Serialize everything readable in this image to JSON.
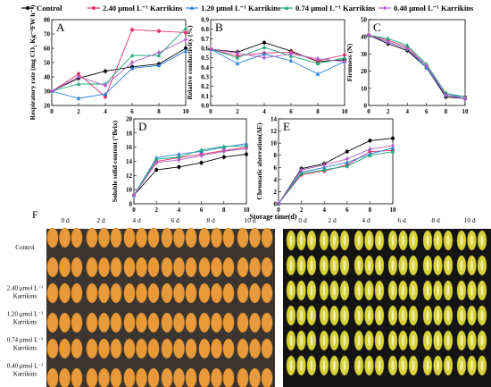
{
  "legend": {
    "items": [
      {
        "label": "Control",
        "color": "#000000",
        "marker": "circle"
      },
      {
        "label": "2.40 μmol L⁻¹ Karrikins",
        "color": "#e0306a",
        "marker": "circle"
      },
      {
        "label": "1.20 μmol L⁻¹ Karrikins",
        "color": "#2a7fd8",
        "marker": "triangle"
      },
      {
        "label": "0.74 μmol L⁻¹ Karrikins",
        "color": "#18a878",
        "marker": "triangle"
      },
      {
        "label": "0.40 μmol L⁻¹ Karrikins",
        "color": "#b060c8",
        "marker": "diamond"
      }
    ]
  },
  "chart_data": [
    {
      "panel": "A",
      "type": "line",
      "ylabel": "Respiratory rate (mg CO₂ Kg⁻¹FW h⁻¹)",
      "x": [
        0,
        2,
        4,
        6,
        8,
        10
      ],
      "xlim": [
        0,
        10
      ],
      "ylim": [
        20,
        80
      ],
      "yticks": [
        20,
        30,
        40,
        50,
        60,
        70,
        80
      ],
      "xticks": [
        0,
        2,
        4,
        6,
        8,
        10
      ],
      "series": [
        {
          "name": "Control",
          "values": [
            30,
            39,
            44,
            47,
            49,
            60
          ]
        },
        {
          "name": "2.40 μmol L⁻¹ Karrikins",
          "values": [
            30,
            42,
            26,
            73,
            72,
            71
          ]
        },
        {
          "name": "1.20 μmol L⁻¹ Karrikins",
          "values": [
            30,
            25,
            28,
            46,
            48,
            58
          ]
        },
        {
          "name": "0.74 μmol L⁻¹ Karrikins",
          "values": [
            30,
            35,
            35,
            55,
            55,
            74
          ]
        },
        {
          "name": "0.40 μmol L⁻¹ Karrikins",
          "values": [
            30,
            40,
            34,
            50,
            57,
            66
          ]
        }
      ]
    },
    {
      "panel": "B",
      "type": "line",
      "ylabel": "Relative conductivity (%)",
      "x": [
        0,
        2,
        4,
        6,
        8,
        10
      ],
      "xlim": [
        0,
        10
      ],
      "ylim": [
        0.0,
        0.9
      ],
      "yticks": [
        0.0,
        0.1,
        0.2,
        0.3,
        0.4,
        0.5,
        0.6,
        0.7,
        0.8,
        0.9
      ],
      "xticks": [
        0,
        2,
        4,
        6,
        8,
        10
      ],
      "series": [
        {
          "name": "Control",
          "values": [
            0.59,
            0.56,
            0.66,
            0.57,
            0.46,
            0.48
          ]
        },
        {
          "name": "2.40 μmol L⁻¹ Karrikins",
          "values": [
            0.59,
            0.52,
            0.55,
            0.56,
            0.47,
            0.53
          ]
        },
        {
          "name": "1.20 μmol L⁻¹ Karrikins",
          "values": [
            0.59,
            0.44,
            0.54,
            0.47,
            0.33,
            0.46
          ]
        },
        {
          "name": "0.74 μmol L⁻¹ Karrikins",
          "values": [
            0.59,
            0.5,
            0.61,
            0.52,
            0.44,
            0.5
          ]
        },
        {
          "name": "0.40 μmol L⁻¹ Karrikins",
          "values": [
            0.59,
            0.55,
            0.5,
            0.54,
            0.49,
            0.46
          ]
        }
      ]
    },
    {
      "panel": "C",
      "type": "line",
      "ylabel": "Firmness (N)",
      "x": [
        0,
        2,
        4,
        6,
        8,
        10
      ],
      "xlim": [
        0,
        10
      ],
      "ylim": [
        0,
        50
      ],
      "yticks": [
        0,
        10,
        20,
        30,
        40,
        50
      ],
      "xticks": [
        0,
        2,
        4,
        6,
        8,
        10
      ],
      "series": [
        {
          "name": "Control",
          "values": [
            41,
            36,
            32,
            22,
            5,
            4
          ]
        },
        {
          "name": "2.40 μmol L⁻¹ Karrikins",
          "values": [
            41,
            38,
            34,
            23,
            7,
            5
          ]
        },
        {
          "name": "1.20 μmol L⁻¹ Karrikins",
          "values": [
            41,
            37,
            33,
            22,
            6,
            5
          ]
        },
        {
          "name": "0.74 μmol L⁻¹ Karrikins",
          "values": [
            41,
            39,
            35,
            24,
            7,
            5
          ]
        },
        {
          "name": "0.40 μmol L⁻¹ Karrikins",
          "values": [
            41,
            37,
            33,
            23,
            6,
            4
          ]
        }
      ]
    },
    {
      "panel": "D",
      "type": "line",
      "ylabel": "Soluble solid content (°Brix)",
      "x": [
        0,
        2,
        4,
        6,
        8,
        10
      ],
      "xlim": [
        0,
        10
      ],
      "ylim": [
        8,
        20
      ],
      "yticks": [
        8,
        10,
        12,
        14,
        16,
        18,
        20
      ],
      "xticks": [
        0,
        2,
        4,
        6,
        8,
        10
      ],
      "series": [
        {
          "name": "Control",
          "values": [
            9.2,
            12.8,
            13.2,
            13.8,
            14.6,
            15.0
          ]
        },
        {
          "name": "2.40 μmol L⁻¹ Karrikins",
          "values": [
            9.2,
            14.0,
            14.5,
            15.0,
            15.5,
            16.0
          ]
        },
        {
          "name": "1.20 μmol L⁻¹ Karrikins",
          "values": [
            9.2,
            14.5,
            15.0,
            15.4,
            16.0,
            16.5
          ]
        },
        {
          "name": "0.74 μmol L⁻¹ Karrikins",
          "values": [
            9.2,
            14.3,
            14.6,
            15.6,
            16.1,
            16.2
          ]
        },
        {
          "name": "0.40 μmol L⁻¹ Karrikins",
          "values": [
            9.2,
            13.8,
            14.2,
            14.8,
            15.4,
            15.8
          ]
        }
      ]
    },
    {
      "panel": "E",
      "type": "line",
      "ylabel": "Chromatic aberration(ΔE)",
      "xlabel": "Storage time(d)",
      "x": [
        0,
        2,
        4,
        6,
        8,
        10
      ],
      "xlim": [
        0,
        10
      ],
      "ylim": [
        0,
        14
      ],
      "yticks": [
        0,
        2,
        4,
        6,
        8,
        10,
        12,
        14
      ],
      "xticks": [
        0,
        2,
        4,
        6,
        8,
        10
      ],
      "series": [
        {
          "name": "Control",
          "values": [
            0,
            5.8,
            6.6,
            8.6,
            10.4,
            10.8
          ]
        },
        {
          "name": "2.40 μmol L⁻¹ Karrikins",
          "values": [
            0,
            4.8,
            5.4,
            6.4,
            8.6,
            8.8
          ]
        },
        {
          "name": "1.20 μmol L⁻¹ Karrikins",
          "values": [
            0,
            5.2,
            6.0,
            6.8,
            8.2,
            9.2
          ]
        },
        {
          "name": "0.74 μmol L⁻¹ Karrikins",
          "values": [
            0,
            5.0,
            5.6,
            6.2,
            8.0,
            8.6
          ]
        },
        {
          "name": "0.40 μmol L⁻¹ Karrikins",
          "values": [
            0,
            5.6,
            6.4,
            7.4,
            9.0,
            9.6
          ]
        }
      ]
    }
  ],
  "panel_f": {
    "label": "F",
    "days": [
      "0 d",
      "2 d",
      "4 d",
      "6 d",
      "8 d",
      "10 d"
    ],
    "rows": [
      "Control",
      "2.40 μmol L⁻¹\nKarrikins",
      "1.20 μmol L⁻¹\nKarrikins",
      "0.74 μmol L⁻¹\nKarrikins",
      "0.40 μmol L⁻¹\nKarrikins"
    ],
    "whole_fruit_color": "#e89a3a",
    "cut_fruit_color": "#d8d23a",
    "cut_background": "#141414"
  }
}
